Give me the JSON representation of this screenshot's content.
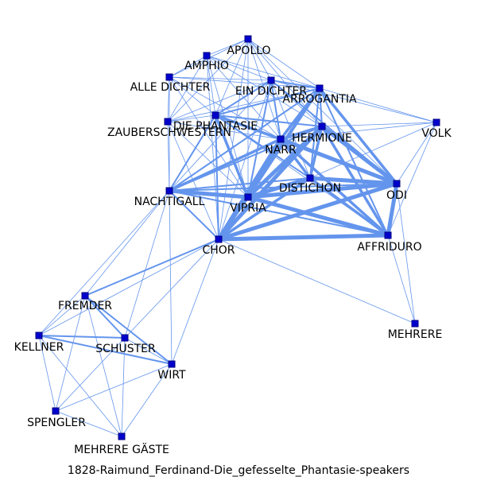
{
  "title": "1828-Raimund_Ferdinand-Die_gefesselte_Phantasie-speakers",
  "colors": {
    "edge": "#6495ed",
    "node": "#0000cd",
    "label": "#000000"
  },
  "nodes": [
    {
      "id": "apollo",
      "label": "APOLLO"
    },
    {
      "id": "amphio",
      "label": "AMPHIO"
    },
    {
      "id": "alle_dichter",
      "label": "ALLE DICHTER"
    },
    {
      "id": "ein_dichter",
      "label": "EIN DICHTER"
    },
    {
      "id": "arrogantia",
      "label": "ARROGANTIA"
    },
    {
      "id": "die_phantasie",
      "label": "DIE PHANTASIE"
    },
    {
      "id": "zauberschwestern",
      "label": "ZAUBERSCHWESTERN"
    },
    {
      "id": "hermione",
      "label": "HERMIONE"
    },
    {
      "id": "narr",
      "label": "NARR"
    },
    {
      "id": "volk",
      "label": "VOLK"
    },
    {
      "id": "distichon",
      "label": "DISTICHON"
    },
    {
      "id": "odi",
      "label": "ODI"
    },
    {
      "id": "nachtigall",
      "label": "NACHTIGALL"
    },
    {
      "id": "vipria",
      "label": "VIPRIA"
    },
    {
      "id": "affriduro",
      "label": "AFFRIDURO"
    },
    {
      "id": "chor",
      "label": "CHOR"
    },
    {
      "id": "fremder",
      "label": "FREMDER"
    },
    {
      "id": "mehrere",
      "label": "MEHRERE"
    },
    {
      "id": "kellner",
      "label": "KELLNER"
    },
    {
      "id": "schuster",
      "label": "SCHUSTER"
    },
    {
      "id": "wirt",
      "label": "WIRT"
    },
    {
      "id": "spengler",
      "label": "SPENGLER"
    },
    {
      "id": "mehrere_gaeste",
      "label": "MEHRERE GÄSTE"
    }
  ],
  "edges": [
    [
      "vipria",
      "narr",
      4
    ],
    [
      "vipria",
      "hermione",
      4
    ],
    [
      "vipria",
      "arrogantia",
      3
    ],
    [
      "vipria",
      "odi",
      4
    ],
    [
      "vipria",
      "affriduro",
      4
    ],
    [
      "vipria",
      "distichon",
      4
    ],
    [
      "vipria",
      "nachtigall",
      4
    ],
    [
      "vipria",
      "chor",
      3
    ],
    [
      "vipria",
      "die_phantasie",
      3
    ],
    [
      "vipria",
      "ein_dichter",
      2
    ],
    [
      "vipria",
      "alle_dichter",
      1
    ],
    [
      "vipria",
      "apollo",
      1
    ],
    [
      "vipria",
      "amphio",
      1
    ],
    [
      "vipria",
      "zauberschwestern",
      1
    ],
    [
      "chor",
      "narr",
      4
    ],
    [
      "chor",
      "hermione",
      4
    ],
    [
      "chor",
      "odi",
      4
    ],
    [
      "chor",
      "affriduro",
      4
    ],
    [
      "chor",
      "distichon",
      3
    ],
    [
      "chor",
      "arrogantia",
      3
    ],
    [
      "chor",
      "nachtigall",
      2
    ],
    [
      "chor",
      "die_phantasie",
      2
    ],
    [
      "chor",
      "zauberschwestern",
      1
    ],
    [
      "chor",
      "ein_dichter",
      1
    ],
    [
      "chor",
      "fremder",
      2
    ],
    [
      "chor",
      "schuster",
      1
    ],
    [
      "chor",
      "wirt",
      1
    ],
    [
      "chor",
      "kellner",
      1
    ],
    [
      "chor",
      "mehrere",
      1
    ],
    [
      "chor",
      "amphio",
      1
    ],
    [
      "chor",
      "apollo",
      1
    ],
    [
      "narr",
      "hermione",
      3
    ],
    [
      "narr",
      "odi",
      4
    ],
    [
      "narr",
      "affriduro",
      3
    ],
    [
      "narr",
      "distichon",
      3
    ],
    [
      "narr",
      "arrogantia",
      3
    ],
    [
      "narr",
      "nachtigall",
      3
    ],
    [
      "narr",
      "die_phantasie",
      3
    ],
    [
      "narr",
      "ein_dichter",
      2
    ],
    [
      "narr",
      "volk",
      1
    ],
    [
      "narr",
      "apollo",
      1
    ],
    [
      "narr",
      "amphio",
      1
    ],
    [
      "narr",
      "alle_dichter",
      1
    ],
    [
      "narr",
      "zauberschwestern",
      1
    ],
    [
      "hermione",
      "odi",
      4
    ],
    [
      "hermione",
      "affriduro",
      3
    ],
    [
      "hermione",
      "distichon",
      3
    ],
    [
      "hermione",
      "arrogantia",
      2
    ],
    [
      "hermione",
      "nachtigall",
      2
    ],
    [
      "hermione",
      "die_phantasie",
      2
    ],
    [
      "hermione",
      "volk",
      1
    ],
    [
      "hermione",
      "apollo",
      1
    ],
    [
      "hermione",
      "ein_dichter",
      1
    ],
    [
      "hermione",
      "amphio",
      1
    ],
    [
      "odi",
      "affriduro",
      4
    ],
    [
      "odi",
      "distichon",
      4
    ],
    [
      "odi",
      "arrogantia",
      3
    ],
    [
      "odi",
      "nachtigall",
      2
    ],
    [
      "odi",
      "volk",
      1
    ],
    [
      "odi",
      "die_phantasie",
      2
    ],
    [
      "odi",
      "ein_dichter",
      2
    ],
    [
      "odi",
      "mehrere",
      1
    ],
    [
      "odi",
      "apollo",
      1
    ],
    [
      "affriduro",
      "distichon",
      3
    ],
    [
      "affriduro",
      "arrogantia",
      2
    ],
    [
      "affriduro",
      "nachtigall",
      2
    ],
    [
      "affriduro",
      "mehrere",
      1
    ],
    [
      "affriduro",
      "volk",
      1
    ],
    [
      "affriduro",
      "die_phantasie",
      1
    ],
    [
      "distichon",
      "arrogantia",
      2
    ],
    [
      "distichon",
      "nachtigall",
      2
    ],
    [
      "distichon",
      "die_phantasie",
      2
    ],
    [
      "distichon",
      "ein_dichter",
      1
    ],
    [
      "arrogantia",
      "ein_dichter",
      2
    ],
    [
      "arrogantia",
      "die_phantasie",
      2
    ],
    [
      "arrogantia",
      "nachtigall",
      2
    ],
    [
      "arrogantia",
      "apollo",
      1
    ],
    [
      "arrogantia",
      "amphio",
      1
    ],
    [
      "arrogantia",
      "alle_dichter",
      1
    ],
    [
      "arrogantia",
      "zauberschwestern",
      1
    ],
    [
      "nachtigall",
      "die_phantasie",
      2
    ],
    [
      "nachtigall",
      "zauberschwestern",
      1
    ],
    [
      "nachtigall",
      "ein_dichter",
      1
    ],
    [
      "nachtigall",
      "fremder",
      1
    ],
    [
      "nachtigall",
      "schuster",
      1
    ],
    [
      "nachtigall",
      "wirt",
      1
    ],
    [
      "nachtigall",
      "kellner",
      1
    ],
    [
      "nachtigall",
      "alle_dichter",
      1
    ],
    [
      "die_phantasie",
      "ein_dichter",
      2
    ],
    [
      "die_phantasie",
      "zauberschwestern",
      1
    ],
    [
      "die_phantasie",
      "amphio",
      1
    ],
    [
      "die_phantasie",
      "apollo",
      1
    ],
    [
      "die_phantasie",
      "alle_dichter",
      1
    ],
    [
      "ein_dichter",
      "apollo",
      1
    ],
    [
      "ein_dichter",
      "amphio",
      1
    ],
    [
      "ein_dichter",
      "alle_dichter",
      1
    ],
    [
      "ein_dichter",
      "zauberschwestern",
      1
    ],
    [
      "apollo",
      "amphio",
      1
    ],
    [
      "apollo",
      "alle_dichter",
      1
    ],
    [
      "apollo",
      "zauberschwestern",
      1
    ],
    [
      "amphio",
      "alle_dichter",
      1
    ],
    [
      "amphio",
      "zauberschwestern",
      1
    ],
    [
      "alle_dichter",
      "zauberschwestern",
      1
    ],
    [
      "volk",
      "ein_dichter",
      1
    ],
    [
      "volk",
      "arrogantia",
      1
    ],
    [
      "volk",
      "distichon",
      1
    ],
    [
      "fremder",
      "schuster",
      2
    ],
    [
      "fremder",
      "kellner",
      1
    ],
    [
      "fremder",
      "wirt",
      2
    ],
    [
      "fremder",
      "spengler",
      1
    ],
    [
      "fremder",
      "mehrere_gaeste",
      1
    ],
    [
      "schuster",
      "kellner",
      2
    ],
    [
      "schuster",
      "wirt",
      1
    ],
    [
      "schuster",
      "spengler",
      1
    ],
    [
      "schuster",
      "mehrere_gaeste",
      1
    ],
    [
      "kellner",
      "wirt",
      2
    ],
    [
      "kellner",
      "spengler",
      1
    ],
    [
      "kellner",
      "mehrere_gaeste",
      1
    ],
    [
      "wirt",
      "spengler",
      1
    ],
    [
      "wirt",
      "mehrere_gaeste",
      1
    ],
    [
      "spengler",
      "mehrere_gaeste",
      1
    ]
  ]
}
